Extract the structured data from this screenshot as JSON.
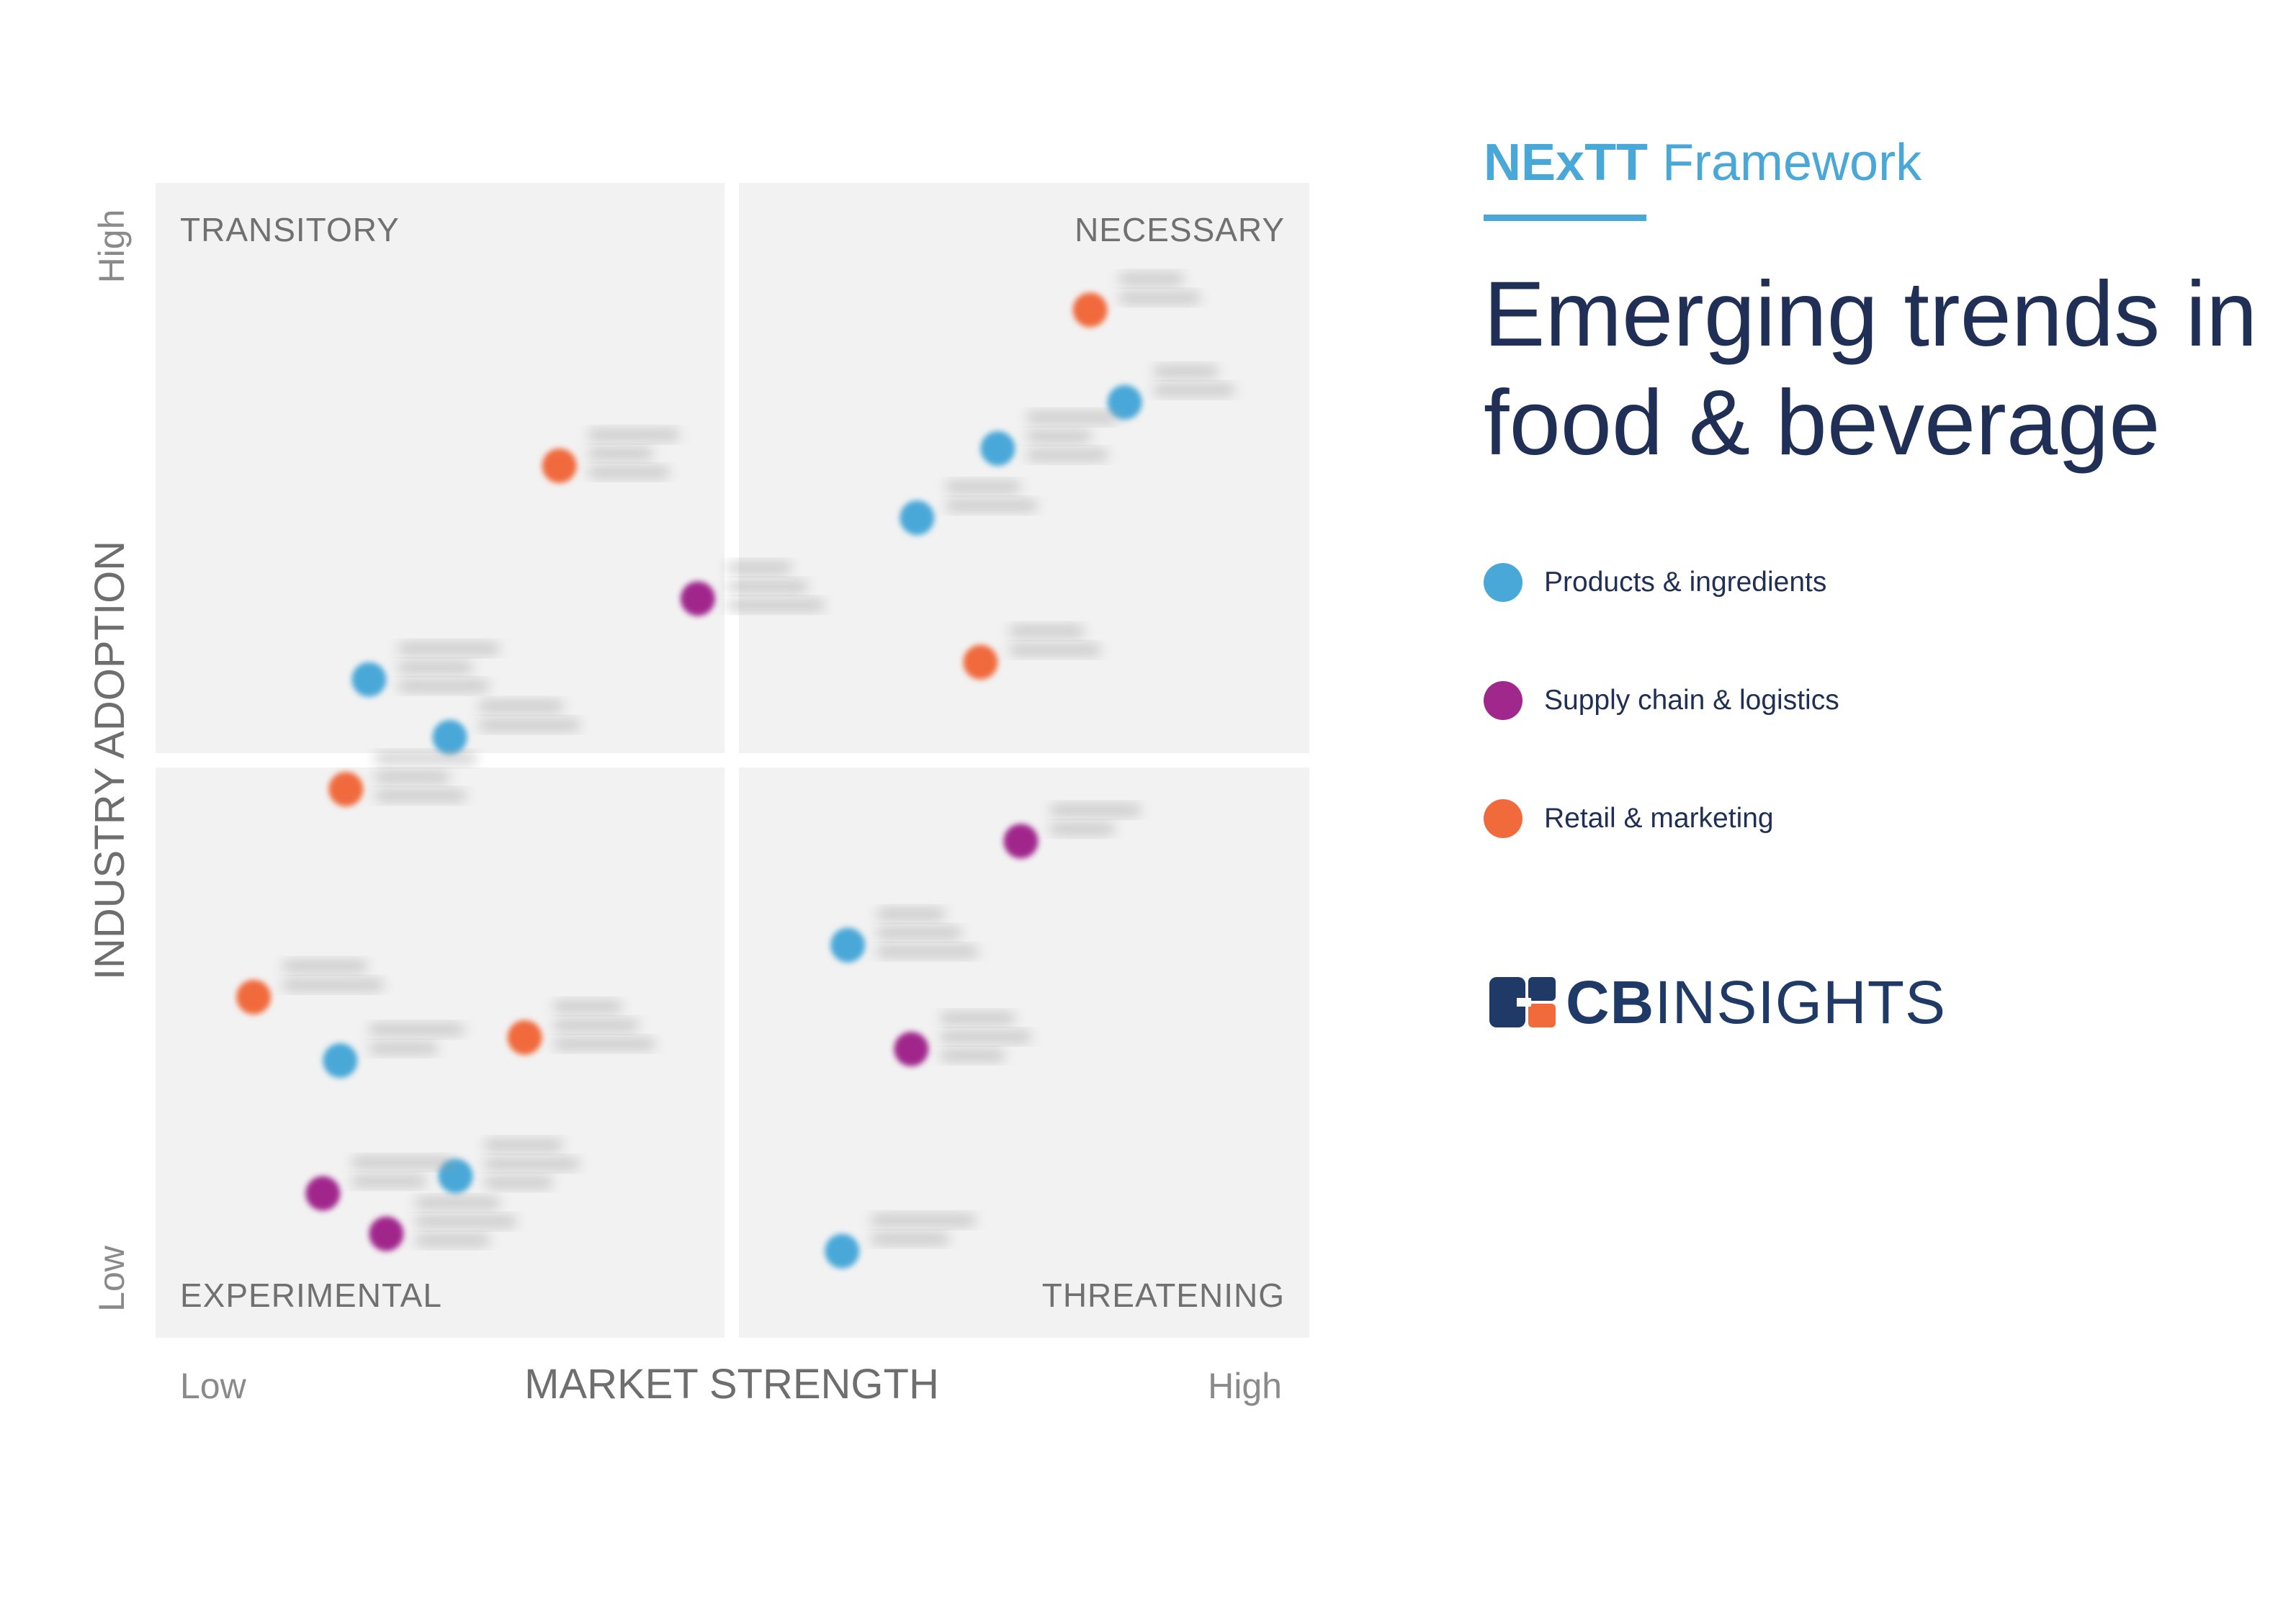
{
  "chart_data": {
    "type": "scatter",
    "quadrants": {
      "top_left": "TRANSITORY",
      "top_right": "NECESSARY",
      "bottom_left": "EXPERIMENTAL",
      "bottom_right": "THREATENING"
    },
    "xlabel": "MARKET STRENGTH",
    "ylabel": "INDUSTRY ADOPTION",
    "x_low_label": "Low",
    "x_high_label": "High",
    "y_low_label": "Low",
    "y_high_label": "High",
    "xlim": [
      0,
      1
    ],
    "ylim": [
      0,
      1
    ],
    "point_labels_blurred": true,
    "series": [
      {
        "name": "Products & ingredients",
        "color": "#4aa8d8",
        "points": [
          {
            "x": 0.84,
            "y": 0.81
          },
          {
            "x": 0.73,
            "y": 0.77
          },
          {
            "x": 0.66,
            "y": 0.71
          },
          {
            "x": 0.185,
            "y": 0.57
          },
          {
            "x": 0.255,
            "y": 0.52
          },
          {
            "x": 0.6,
            "y": 0.34
          },
          {
            "x": 0.16,
            "y": 0.24
          },
          {
            "x": 0.26,
            "y": 0.14
          },
          {
            "x": 0.595,
            "y": 0.075
          }
        ]
      },
      {
        "name": "Supply chain & logistics",
        "color": "#a0288c",
        "points": [
          {
            "x": 0.47,
            "y": 0.64
          },
          {
            "x": 0.75,
            "y": 0.43
          },
          {
            "x": 0.655,
            "y": 0.25
          },
          {
            "x": 0.145,
            "y": 0.125
          },
          {
            "x": 0.2,
            "y": 0.09
          }
        ]
      },
      {
        "name": "Retail & marketing",
        "color": "#f06a3c",
        "points": [
          {
            "x": 0.81,
            "y": 0.89
          },
          {
            "x": 0.35,
            "y": 0.755
          },
          {
            "x": 0.715,
            "y": 0.585
          },
          {
            "x": 0.165,
            "y": 0.475
          },
          {
            "x": 0.085,
            "y": 0.295
          },
          {
            "x": 0.32,
            "y": 0.26
          }
        ]
      }
    ]
  },
  "panel": {
    "framework_strong": "NExTT",
    "framework_rest": " Framework",
    "headline_line1": "Emerging trends in",
    "headline_line2": "food & beverage",
    "legend": [
      {
        "label": "Products & ingredients",
        "color": "#4aa8d8"
      },
      {
        "label": "Supply chain & logistics",
        "color": "#a0288c"
      },
      {
        "label": "Retail & marketing",
        "color": "#f06a3c"
      }
    ]
  },
  "logo": {
    "bold": "CB",
    "rest": "INSIGHTS"
  },
  "colors": {
    "accent": "#4aa8d8",
    "headline": "#1f2f55",
    "quadrant_bg": "#f2f2f2"
  }
}
